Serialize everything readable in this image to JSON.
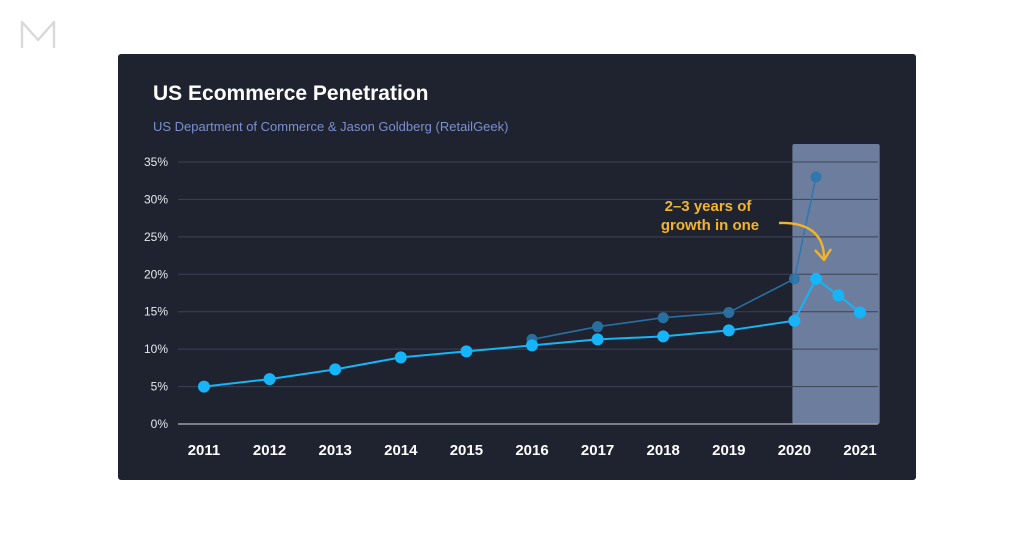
{
  "brand": {
    "logo_text": "M",
    "logo_color": "#d9d9d9"
  },
  "colors": {
    "card_bg": "#1f2330",
    "grid": "#3d4354",
    "primary": "#16b4f8",
    "secondary": "#2a78ad",
    "highlight": "#8193ba",
    "annotation": "#f3b42c",
    "subtitle": "#7c8fd0"
  },
  "chart_data": {
    "type": "line",
    "title": "US Ecommerce Penetration",
    "subtitle": "US Department of Commerce & Jason Goldberg (RetailGeek)",
    "xlabel": "",
    "ylabel": "",
    "xlim": [
      2011,
      2021
    ],
    "ylim": [
      0,
      35
    ],
    "y_ticks": [
      0,
      5,
      10,
      15,
      20,
      25,
      30,
      35
    ],
    "y_tick_labels": [
      "0%",
      "5%",
      "10%",
      "15%",
      "20%",
      "25%",
      "30%",
      "35%"
    ],
    "x_ticks": [
      2011,
      2012,
      2013,
      2014,
      2015,
      2016,
      2017,
      2018,
      2019,
      2020,
      2021
    ],
    "x_tick_labels": [
      "2011",
      "2012",
      "2013",
      "2014",
      "2015",
      "2016",
      "2017",
      "2018",
      "2019",
      "2020",
      "2021"
    ],
    "grid": true,
    "legend": "none",
    "highlight_range": [
      2020,
      2021.3
    ],
    "series": [
      {
        "x": [
          2011,
          2012,
          2013,
          2014,
          2015,
          2016,
          2017,
          2018,
          2019,
          2020,
          2020.33,
          2020.67,
          2021
        ],
        "y": [
          5.0,
          6.0,
          7.3,
          8.9,
          9.7,
          10.5,
          11.3,
          11.7,
          12.5,
          13.8,
          19.4,
          17.2,
          14.9
        ]
      },
      {
        "x": [
          2016,
          2017,
          2018,
          2019,
          2020,
          2020.33
        ],
        "y": [
          11.3,
          13.0,
          14.2,
          14.9,
          19.4,
          33.0
        ]
      }
    ],
    "annotations": [
      {
        "text_line1": "2–3 years of",
        "text_line2": "growth in one"
      }
    ]
  }
}
